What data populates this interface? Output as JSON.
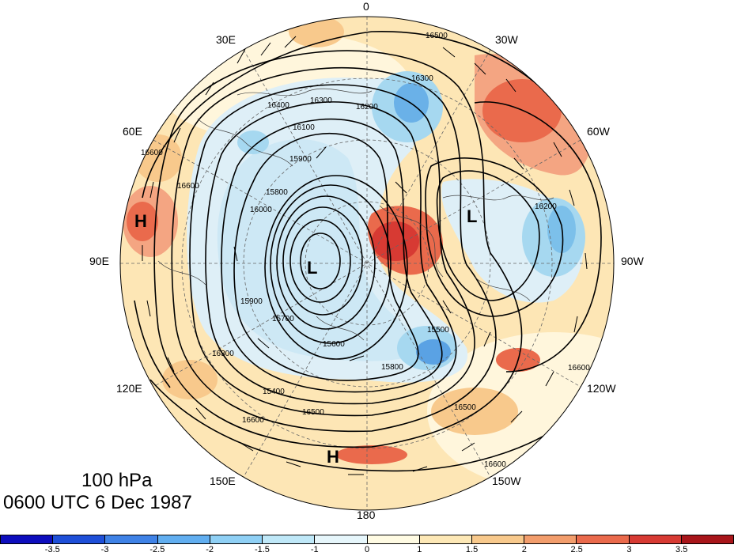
{
  "map": {
    "longitude_labels": {
      "lon_0": "0",
      "lon_30w": "30W",
      "lon_60w": "60W",
      "lon_90w": "90W",
      "lon_120w": "120W",
      "lon_150w": "150W",
      "lon_180": "180",
      "lon_150e": "150E",
      "lon_120e": "120E",
      "lon_90e": "90E",
      "lon_60e": "60E",
      "lon_30e": "30E"
    },
    "markers": {
      "high_west": "H",
      "high_south": "H",
      "low_center": "L",
      "low_east": "L"
    },
    "contour_labels": [
      "16500",
      "16300",
      "16200",
      "16400",
      "16300",
      "16100",
      "15900",
      "15800",
      "16600",
      "16600",
      "16000",
      "15900",
      "15700",
      "15600",
      "15800",
      "15500",
      "16300",
      "15400",
      "16500",
      "16600",
      "16600",
      "16200",
      "16500",
      "16600"
    ],
    "colors": {
      "positive_max": "#a50f15",
      "positive_strong": "#e34a33",
      "positive_mid": "#f4a582",
      "positive_low": "#fde6b5",
      "negative_low": "#deeff7",
      "negative_mid": "#a6d8f0",
      "negative_strong": "#4a90e2"
    }
  },
  "caption": {
    "level": "100 hPa",
    "datetime": "0600 UTC 6 Dec 1987"
  },
  "colorbar": {
    "colors": [
      "#0d0dbd",
      "#1e4fd8",
      "#3f82e6",
      "#61aef0",
      "#8fd0f5",
      "#bfe8f8",
      "#e6f6fb",
      "#fffbe3",
      "#fde8b6",
      "#f8c98c",
      "#f29d6c",
      "#ea6a4c",
      "#d73a33",
      "#a8151a"
    ],
    "tick_labels": [
      "-3.5",
      "-3",
      "-2.5",
      "-2",
      "-1.5",
      "-1",
      "0",
      "1",
      "1.5",
      "2",
      "2.5",
      "3",
      "3.5"
    ]
  }
}
